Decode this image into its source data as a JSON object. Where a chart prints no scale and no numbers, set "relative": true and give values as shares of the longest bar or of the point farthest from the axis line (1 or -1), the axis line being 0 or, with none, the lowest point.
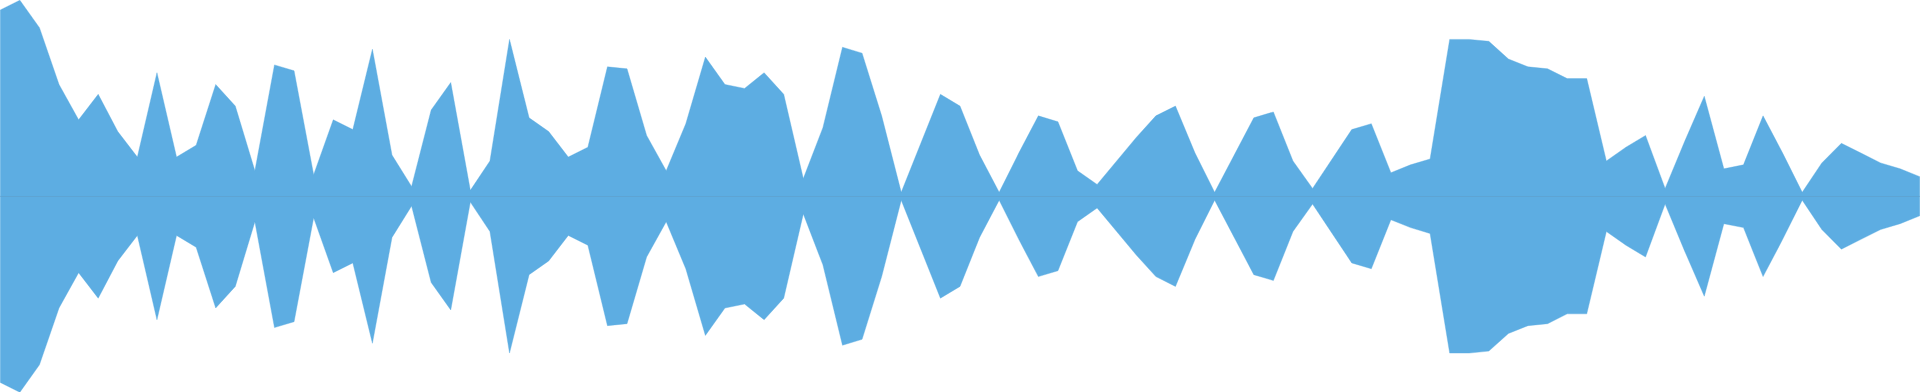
{
  "chart_data": {
    "type": "area",
    "relative": true,
    "ref_lines": [
      {
        "axis": "y",
        "value": 0,
        "color": "#4a8ab5"
      }
    ],
    "categories": [
      null,
      null,
      null,
      null,
      null,
      null,
      null,
      null,
      null,
      null,
      null,
      null,
      null,
      null,
      null,
      null,
      null,
      null,
      null,
      null,
      null,
      null,
      null,
      null,
      null,
      null,
      null,
      null,
      null,
      null,
      null,
      null,
      null,
      null,
      null,
      null,
      null,
      null,
      null,
      null,
      null,
      null,
      null,
      null,
      null,
      null,
      null,
      null,
      null,
      null,
      null,
      null,
      null,
      null,
      null,
      null,
      null,
      null,
      null,
      null,
      null,
      null,
      null,
      null,
      null,
      null,
      null,
      null,
      null,
      null,
      null,
      null,
      null,
      null,
      null,
      null,
      null,
      null,
      null,
      null,
      null,
      null,
      null,
      null,
      null,
      null,
      null,
      null,
      null,
      null,
      null,
      null,
      null,
      null,
      null,
      null,
      null,
      null,
      null
    ],
    "series": [
      {
        "color": "#5dade2",
        "values": [
          0.95,
          1,
          0.86,
          0.57,
          0.39,
          0.52,
          0.33,
          0.2,
          0.63,
          0.2,
          0.26,
          0.57,
          0.46,
          0.13,
          0.67,
          0.64,
          0.11,
          0.39,
          0.34,
          0.75,
          0.21,
          0.05,
          0.44,
          0.58,
          0.03,
          0.18,
          0.8,
          0.4,
          0.33,
          0.2,
          0.25,
          0.66,
          0.65,
          0.31,
          0.13,
          0.37,
          0.71,
          0.57,
          0.55,
          0.63,
          0.52,
          0.09,
          0.35,
          0.76,
          0.73,
          0.41,
          0.02,
          0.27,
          0.52,
          0.46,
          0.21,
          0.02,
          0.22,
          0.41,
          0.38,
          0.13,
          0.06,
          0.18,
          0.3,
          0.41,
          0.46,
          0.22,
          0.02,
          0.21,
          0.4,
          0.43,
          0.18,
          0.04,
          0.19,
          0.34,
          0.37,
          0.12,
          0.16,
          0.19,
          0.8,
          0.8,
          0.79,
          0.7,
          0.66,
          0.65,
          0.6,
          0.6,
          0.18,
          0.25,
          0.31,
          0.04,
          0.28,
          0.51,
          0.14,
          0.16,
          0.41,
          0.22,
          0.02,
          0.17,
          0.27,
          0.22,
          0.17,
          0.14,
          0.1
        ]
      },
      {
        "color": "#5dade2",
        "values": [
          -0.95,
          -1,
          -0.86,
          -0.57,
          -0.39,
          -0.52,
          -0.33,
          -0.2,
          -0.63,
          -0.2,
          -0.26,
          -0.57,
          -0.46,
          -0.13,
          -0.67,
          -0.64,
          -0.11,
          -0.39,
          -0.34,
          -0.75,
          -0.21,
          -0.05,
          -0.44,
          -0.58,
          -0.03,
          -0.18,
          -0.8,
          -0.4,
          -0.33,
          -0.2,
          -0.25,
          -0.66,
          -0.65,
          -0.31,
          -0.13,
          -0.37,
          -0.71,
          -0.57,
          -0.55,
          -0.63,
          -0.52,
          -0.09,
          -0.35,
          -0.76,
          -0.73,
          -0.41,
          -0.02,
          -0.27,
          -0.52,
          -0.46,
          -0.21,
          -0.02,
          -0.22,
          -0.41,
          -0.38,
          -0.13,
          -0.06,
          -0.18,
          -0.3,
          -0.41,
          -0.46,
          -0.22,
          -0.02,
          -0.21,
          -0.4,
          -0.43,
          -0.18,
          -0.04,
          -0.19,
          -0.34,
          -0.37,
          -0.12,
          -0.16,
          -0.19,
          -0.8,
          -0.8,
          -0.79,
          -0.7,
          -0.66,
          -0.65,
          -0.6,
          -0.6,
          -0.18,
          -0.25,
          -0.31,
          -0.04,
          -0.28,
          -0.51,
          -0.14,
          -0.16,
          -0.41,
          -0.22,
          -0.02,
          -0.17,
          -0.27,
          -0.22,
          -0.17,
          -0.14,
          -0.1
        ]
      }
    ]
  }
}
